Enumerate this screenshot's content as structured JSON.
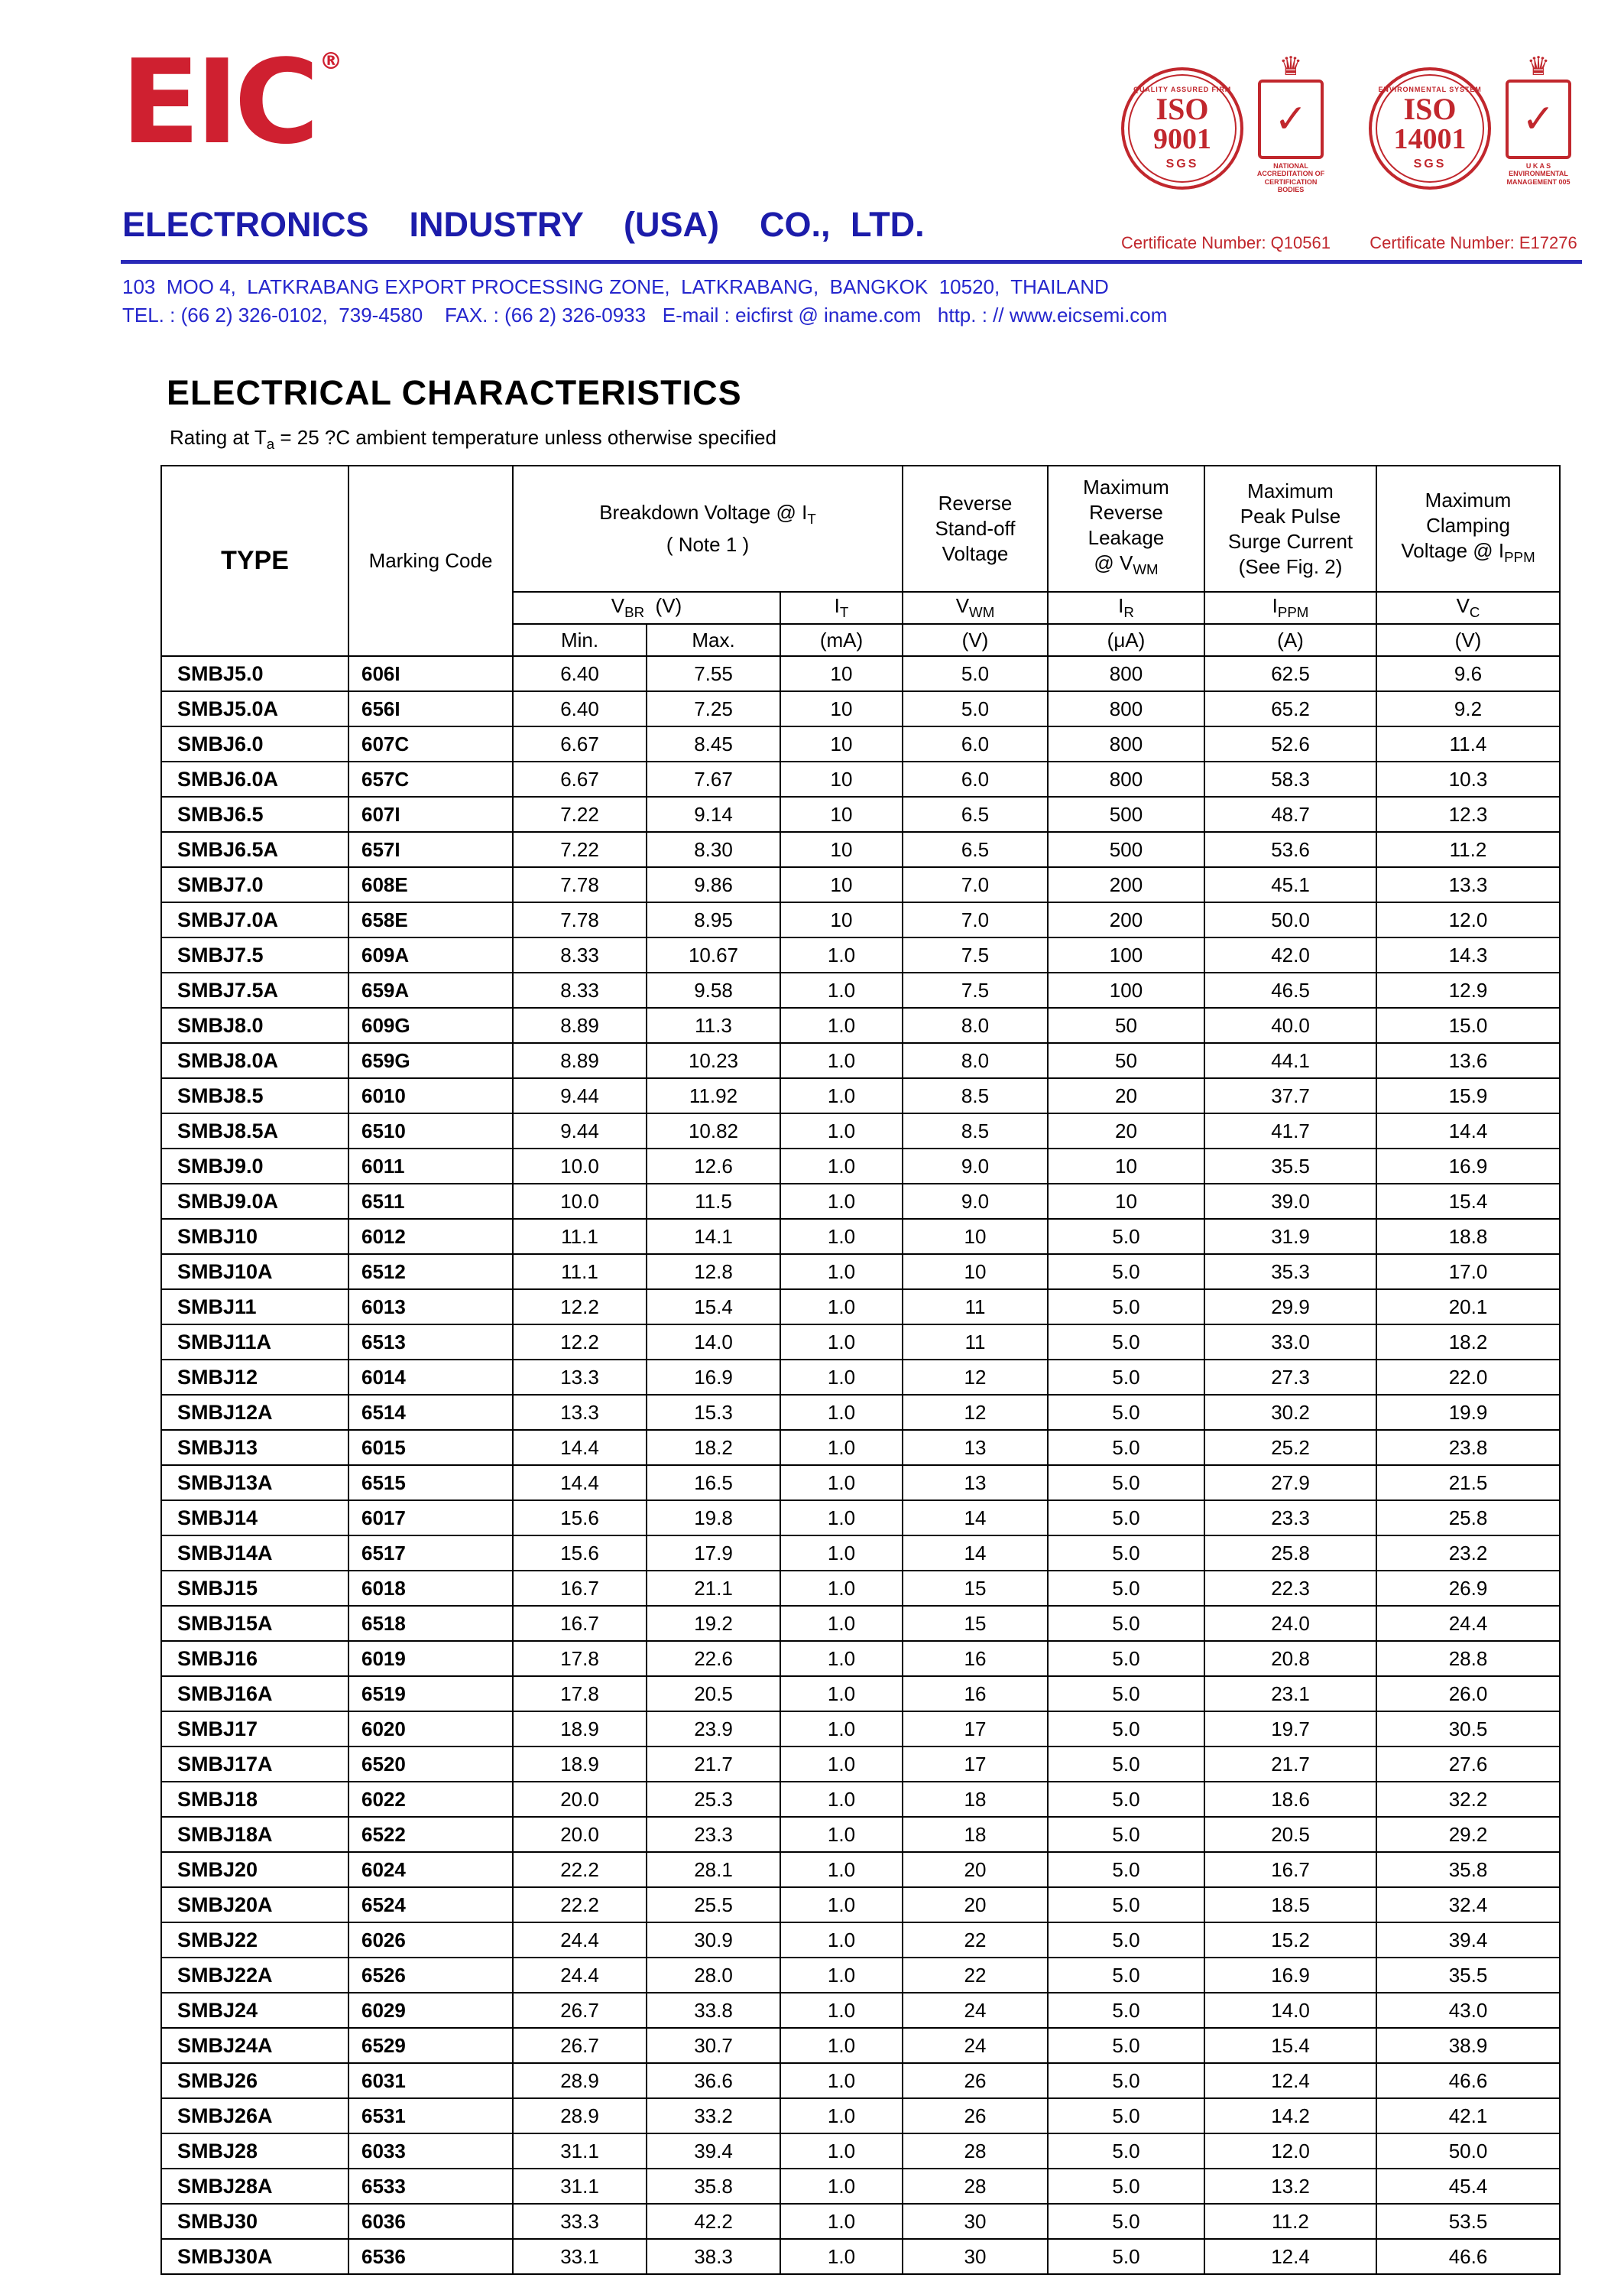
{
  "header": {
    "logo_text": "EIC",
    "registered": "®",
    "company": "ELECTRONICS  INDUSTRY  (USA)  CO., LTD.",
    "address": "103  MOO 4,  LATKRABANG EXPORT PROCESSING ZONE,  LATKRABANG,  BANGKOK  10520,  THAILAND",
    "contact": "TEL. : (66 2) 326-0102,  739-4580    FAX. : (66 2) 326-0933   E-mail : eicfirst @ iname.com   http. : // www.eicsemi.com"
  },
  "badges": [
    {
      "arc_top": "QUALITY ASSURED FIRM",
      "iso_line1": "ISO",
      "iso_line2": "9001",
      "bottom": "SGS",
      "crown": "♛",
      "check": "✓",
      "side_label": "NATIONAL ACCREDITATION OF CERTIFICATION BODIES",
      "cert": "Certificate Number: Q10561"
    },
    {
      "arc_top": "ENVIRONMENTAL SYSTEM",
      "iso_line1": "ISO",
      "iso_line2": "14001",
      "bottom": "SGS",
      "crown": "♛",
      "check": "✓",
      "side_label": "U K A S ENVIRONMENTAL MANAGEMENT 005",
      "cert": "Certificate Number: E17276"
    }
  ],
  "title": "ELECTRICAL CHARACTERISTICS",
  "subtitle": {
    "pre": "Rating at T",
    "sub": "a",
    "post": " = 25 ?C ambient temperature unless otherwise specified"
  },
  "table": {
    "head": {
      "type": "TYPE",
      "marking": "Marking Code",
      "breakdown": {
        "pre": "Breakdown Voltage @  I",
        "sub": "T",
        "note": "( Note 1 )"
      },
      "standoff": {
        "l1": "Reverse",
        "l2": "Stand-off",
        "l3": "Voltage"
      },
      "leakage": {
        "l1": "Maximum",
        "l2": "Reverse",
        "l3": "Leakage",
        "l4pre": "@ V",
        "l4sub": "WM"
      },
      "surge": {
        "l1": "Maximum",
        "l2": "Peak Pulse",
        "l3": "Surge Current",
        "l4": "(See Fig. 2)"
      },
      "clamping": {
        "l1": "Maximum",
        "l2": "Clamping",
        "l3pre": "Voltage @ I",
        "l3sub": "PPM"
      },
      "vbr": {
        "pre": "V",
        "sub": "BR",
        "post": "  (V)"
      },
      "it": {
        "pre": "I",
        "sub": "T"
      },
      "vwm": {
        "pre": "V",
        "sub": "WM"
      },
      "ir": {
        "pre": "I",
        "sub": "R"
      },
      "ippm": {
        "pre": "I",
        "sub": "PPM"
      },
      "vc": {
        "pre": "V",
        "sub": "C"
      },
      "min": "Min.",
      "max": "Max.",
      "u_ma": "(mA)",
      "u_v1": "(V)",
      "u_ua": "(μA)",
      "u_a": "(A)",
      "u_v2": "(V)"
    },
    "rows": [
      [
        "SMBJ5.0",
        "606I",
        "6.40",
        "7.55",
        "10",
        "5.0",
        "800",
        "62.5",
        "9.6"
      ],
      [
        "SMBJ5.0A",
        "656I",
        "6.40",
        "7.25",
        "10",
        "5.0",
        "800",
        "65.2",
        "9.2"
      ],
      [
        "SMBJ6.0",
        "607C",
        "6.67",
        "8.45",
        "10",
        "6.0",
        "800",
        "52.6",
        "11.4"
      ],
      [
        "SMBJ6.0A",
        "657C",
        "6.67",
        "7.67",
        "10",
        "6.0",
        "800",
        "58.3",
        "10.3"
      ],
      [
        "SMBJ6.5",
        "607I",
        "7.22",
        "9.14",
        "10",
        "6.5",
        "500",
        "48.7",
        "12.3"
      ],
      [
        "SMBJ6.5A",
        "657I",
        "7.22",
        "8.30",
        "10",
        "6.5",
        "500",
        "53.6",
        "11.2"
      ],
      [
        "SMBJ7.0",
        "608E",
        "7.78",
        "9.86",
        "10",
        "7.0",
        "200",
        "45.1",
        "13.3"
      ],
      [
        "SMBJ7.0A",
        "658E",
        "7.78",
        "8.95",
        "10",
        "7.0",
        "200",
        "50.0",
        "12.0"
      ],
      [
        "SMBJ7.5",
        "609A",
        "8.33",
        "10.67",
        "1.0",
        "7.5",
        "100",
        "42.0",
        "14.3"
      ],
      [
        "SMBJ7.5A",
        "659A",
        "8.33",
        "9.58",
        "1.0",
        "7.5",
        "100",
        "46.5",
        "12.9"
      ],
      [
        "SMBJ8.0",
        "609G",
        "8.89",
        "11.3",
        "1.0",
        "8.0",
        "50",
        "40.0",
        "15.0"
      ],
      [
        "SMBJ8.0A",
        "659G",
        "8.89",
        "10.23",
        "1.0",
        "8.0",
        "50",
        "44.1",
        "13.6"
      ],
      [
        "SMBJ8.5",
        "6010",
        "9.44",
        "11.92",
        "1.0",
        "8.5",
        "20",
        "37.7",
        "15.9"
      ],
      [
        "SMBJ8.5A",
        "6510",
        "9.44",
        "10.82",
        "1.0",
        "8.5",
        "20",
        "41.7",
        "14.4"
      ],
      [
        "SMBJ9.0",
        "6011",
        "10.0",
        "12.6",
        "1.0",
        "9.0",
        "10",
        "35.5",
        "16.9"
      ],
      [
        "SMBJ9.0A",
        "6511",
        "10.0",
        "11.5",
        "1.0",
        "9.0",
        "10",
        "39.0",
        "15.4"
      ],
      [
        "SMBJ10",
        "6012",
        "11.1",
        "14.1",
        "1.0",
        "10",
        "5.0",
        "31.9",
        "18.8"
      ],
      [
        "SMBJ10A",
        "6512",
        "11.1",
        "12.8",
        "1.0",
        "10",
        "5.0",
        "35.3",
        "17.0"
      ],
      [
        "SMBJ11",
        "6013",
        "12.2",
        "15.4",
        "1.0",
        "11",
        "5.0",
        "29.9",
        "20.1"
      ],
      [
        "SMBJ11A",
        "6513",
        "12.2",
        "14.0",
        "1.0",
        "11",
        "5.0",
        "33.0",
        "18.2"
      ],
      [
        "SMBJ12",
        "6014",
        "13.3",
        "16.9",
        "1.0",
        "12",
        "5.0",
        "27.3",
        "22.0"
      ],
      [
        "SMBJ12A",
        "6514",
        "13.3",
        "15.3",
        "1.0",
        "12",
        "5.0",
        "30.2",
        "19.9"
      ],
      [
        "SMBJ13",
        "6015",
        "14.4",
        "18.2",
        "1.0",
        "13",
        "5.0",
        "25.2",
        "23.8"
      ],
      [
        "SMBJ13A",
        "6515",
        "14.4",
        "16.5",
        "1.0",
        "13",
        "5.0",
        "27.9",
        "21.5"
      ],
      [
        "SMBJ14",
        "6017",
        "15.6",
        "19.8",
        "1.0",
        "14",
        "5.0",
        "23.3",
        "25.8"
      ],
      [
        "SMBJ14A",
        "6517",
        "15.6",
        "17.9",
        "1.0",
        "14",
        "5.0",
        "25.8",
        "23.2"
      ],
      [
        "SMBJ15",
        "6018",
        "16.7",
        "21.1",
        "1.0",
        "15",
        "5.0",
        "22.3",
        "26.9"
      ],
      [
        "SMBJ15A",
        "6518",
        "16.7",
        "19.2",
        "1.0",
        "15",
        "5.0",
        "24.0",
        "24.4"
      ],
      [
        "SMBJ16",
        "6019",
        "17.8",
        "22.6",
        "1.0",
        "16",
        "5.0",
        "20.8",
        "28.8"
      ],
      [
        "SMBJ16A",
        "6519",
        "17.8",
        "20.5",
        "1.0",
        "16",
        "5.0",
        "23.1",
        "26.0"
      ],
      [
        "SMBJ17",
        "6020",
        "18.9",
        "23.9",
        "1.0",
        "17",
        "5.0",
        "19.7",
        "30.5"
      ],
      [
        "SMBJ17A",
        "6520",
        "18.9",
        "21.7",
        "1.0",
        "17",
        "5.0",
        "21.7",
        "27.6"
      ],
      [
        "SMBJ18",
        "6022",
        "20.0",
        "25.3",
        "1.0",
        "18",
        "5.0",
        "18.6",
        "32.2"
      ],
      [
        "SMBJ18A",
        "6522",
        "20.0",
        "23.3",
        "1.0",
        "18",
        "5.0",
        "20.5",
        "29.2"
      ],
      [
        "SMBJ20",
        "6024",
        "22.2",
        "28.1",
        "1.0",
        "20",
        "5.0",
        "16.7",
        "35.8"
      ],
      [
        "SMBJ20A",
        "6524",
        "22.2",
        "25.5",
        "1.0",
        "20",
        "5.0",
        "18.5",
        "32.4"
      ],
      [
        "SMBJ22",
        "6026",
        "24.4",
        "30.9",
        "1.0",
        "22",
        "5.0",
        "15.2",
        "39.4"
      ],
      [
        "SMBJ22A",
        "6526",
        "24.4",
        "28.0",
        "1.0",
        "22",
        "5.0",
        "16.9",
        "35.5"
      ],
      [
        "SMBJ24",
        "6029",
        "26.7",
        "33.8",
        "1.0",
        "24",
        "5.0",
        "14.0",
        "43.0"
      ],
      [
        "SMBJ24A",
        "6529",
        "26.7",
        "30.7",
        "1.0",
        "24",
        "5.0",
        "15.4",
        "38.9"
      ],
      [
        "SMBJ26",
        "6031",
        "28.9",
        "36.6",
        "1.0",
        "26",
        "5.0",
        "12.4",
        "46.6"
      ],
      [
        "SMBJ26A",
        "6531",
        "28.9",
        "33.2",
        "1.0",
        "26",
        "5.0",
        "14.2",
        "42.1"
      ],
      [
        "SMBJ28",
        "6033",
        "31.1",
        "39.4",
        "1.0",
        "28",
        "5.0",
        "12.0",
        "50.0"
      ],
      [
        "SMBJ28A",
        "6533",
        "31.1",
        "35.8",
        "1.0",
        "28",
        "5.0",
        "13.2",
        "45.4"
      ],
      [
        "SMBJ30",
        "6036",
        "33.3",
        "42.2",
        "1.0",
        "30",
        "5.0",
        "11.2",
        "53.5"
      ],
      [
        "SMBJ30A",
        "6536",
        "33.1",
        "38.3",
        "1.0",
        "30",
        "5.0",
        "12.4",
        "46.6"
      ]
    ]
  }
}
